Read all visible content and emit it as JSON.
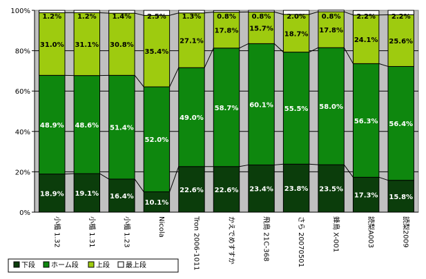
{
  "chart_data": {
    "type": "bar",
    "stacked": true,
    "percent_stacked": true,
    "categories": [
      "小楯 1.32",
      "小楯 1.31",
      "小楯 1.23",
      "Nicola",
      "Tron 2006-1011",
      "かえでめすすか",
      "飛鳥 21C-368",
      "さら 20070501",
      "蜂鳥 X-001",
      "読梨A003",
      "読梨2009"
    ],
    "series": [
      {
        "name": "下段",
        "color": "#0b3d0b",
        "values": [
          18.9,
          19.1,
          16.4,
          10.1,
          22.6,
          22.6,
          23.4,
          23.8,
          23.5,
          17.3,
          15.8
        ],
        "label_color": "#ffffff"
      },
      {
        "name": "ホーム段",
        "color": "#0e870e",
        "values": [
          48.9,
          48.6,
          51.4,
          52.0,
          49.0,
          58.7,
          60.1,
          55.5,
          58.0,
          56.3,
          56.4
        ],
        "label_color": "#ffffff"
      },
      {
        "name": "上段",
        "color": "#9ecb0f",
        "values": [
          31.0,
          31.1,
          30.8,
          35.4,
          27.1,
          17.8,
          15.7,
          18.7,
          17.8,
          24.1,
          25.6
        ],
        "label_color": "#000000"
      },
      {
        "name": "最上段",
        "color": "#ffffff",
        "values": [
          1.2,
          1.2,
          1.4,
          2.5,
          1.3,
          0.8,
          0.8,
          2.0,
          0.8,
          2.2,
          2.2
        ],
        "label_color": "#000000"
      }
    ],
    "data_labels": [
      [
        "18.9%",
        "19.1%",
        "16.4%",
        "10.1%",
        "22.6%",
        "22.6%",
        "23.4%",
        "23.8%",
        "23.5%",
        "17.3%",
        "15.8%"
      ],
      [
        "48.9%",
        "48.6%",
        "51.4%",
        "52.0%",
        "49.0%",
        "58.7%",
        "60.1%",
        "55.5%",
        "58.0%",
        "56.3%",
        "56.4%"
      ],
      [
        "31.0%",
        "31.1%",
        "30.8%",
        "35.4%",
        "27.1%",
        "17.8%",
        "15.7%",
        "18.7%",
        "17.8%",
        "24.1%",
        "25.6%"
      ],
      [
        "1.2%",
        "1.2%",
        "1.4%",
        "2.5%",
        "1.3%",
        "0.8%",
        "0.8%",
        "2.0%",
        "0.8%",
        "2.2%",
        "2.2%"
      ]
    ],
    "yticks": [
      "0%",
      "20%",
      "40%",
      "60%",
      "80%",
      "100%"
    ],
    "ylim": [
      0,
      100
    ],
    "grid": true,
    "plot_background": "#c0c0c0",
    "series_lines": true,
    "legend_position": "bottom-left",
    "title": "",
    "xlabel": "",
    "ylabel": ""
  }
}
